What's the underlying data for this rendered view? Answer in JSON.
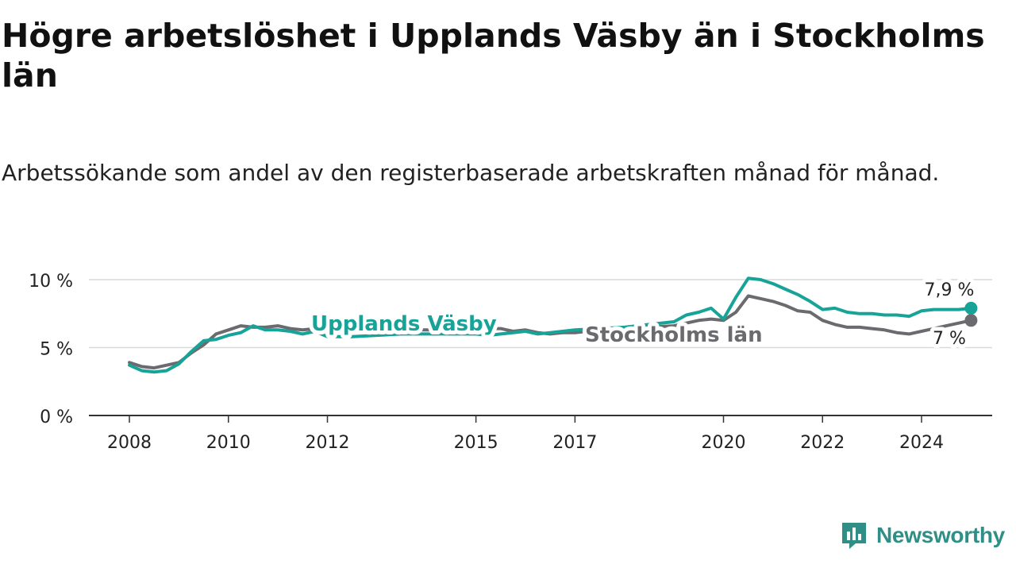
{
  "header": {
    "title": "Högre arbetslöshet i Upplands Väsby än i Stockholms län",
    "subtitle": "Arbetssökande som andel av den registerbaserade arbetskraften månad för månad."
  },
  "brand": {
    "name": "Newsworthy",
    "color": "#2f8f86"
  },
  "chart_data": {
    "type": "line",
    "title": "Högre arbetslöshet i Upplands Väsby än i Stockholms län",
    "subtitle": "Arbetssökande som andel av den registerbaserade arbetskraften månad för månad.",
    "xlabel": "",
    "ylabel": "",
    "xlim": [
      2008,
      2025.5
    ],
    "ylim": [
      0,
      10
    ],
    "y_ticks": [
      0,
      5,
      10
    ],
    "y_tick_labels": [
      "0 %",
      "5 %",
      "10 %"
    ],
    "x_ticks": [
      2008,
      2010,
      2012,
      2015,
      2017,
      2020,
      2022,
      2024
    ],
    "x_tick_labels": [
      "2008",
      "2010",
      "2012",
      "2015",
      "2017",
      "2020",
      "2022",
      "2024"
    ],
    "grid": true,
    "series": [
      {
        "name": "Upplands Väsby",
        "color": "#17a398",
        "label": "Upplands Väsby",
        "end_label": "7,9 %",
        "x": [
          2008.0,
          2008.25,
          2008.5,
          2008.75,
          2009.0,
          2009.25,
          2009.5,
          2009.75,
          2010.0,
          2010.25,
          2010.5,
          2010.75,
          2011.0,
          2011.25,
          2011.5,
          2011.75,
          2012.0,
          2012.5,
          2013.0,
          2013.5,
          2014.0,
          2014.5,
          2015.0,
          2015.25,
          2015.5,
          2015.75,
          2016.0,
          2016.25,
          2016.5,
          2016.75,
          2017.0,
          2017.5,
          2018.0,
          2018.5,
          2019.0,
          2019.25,
          2019.5,
          2019.75,
          2020.0,
          2020.25,
          2020.5,
          2020.75,
          2021.0,
          2021.25,
          2021.5,
          2021.75,
          2022.0,
          2022.25,
          2022.5,
          2022.75,
          2023.0,
          2023.25,
          2023.5,
          2023.75,
          2024.0,
          2024.25,
          2024.5,
          2024.75,
          2025.0
        ],
        "values": [
          3.7,
          3.3,
          3.2,
          3.3,
          3.8,
          4.7,
          5.5,
          5.6,
          5.9,
          6.1,
          6.6,
          6.3,
          6.3,
          6.2,
          6.0,
          6.2,
          5.8,
          5.8,
          5.9,
          6.0,
          6.0,
          6.0,
          6.0,
          5.9,
          6.0,
          6.1,
          6.2,
          6.0,
          6.1,
          6.2,
          6.3,
          6.4,
          6.5,
          6.7,
          6.9,
          7.4,
          7.6,
          7.9,
          7.1,
          8.7,
          10.1,
          10.0,
          9.7,
          9.3,
          8.9,
          8.4,
          7.8,
          7.9,
          7.6,
          7.5,
          7.5,
          7.4,
          7.4,
          7.3,
          7.7,
          7.8,
          7.8,
          7.8,
          7.9
        ]
      },
      {
        "name": "Stockholms län",
        "color": "#6b6b6f",
        "label": "Stockholms län",
        "end_label": "7 %",
        "x": [
          2008.0,
          2008.25,
          2008.5,
          2008.75,
          2009.0,
          2009.25,
          2009.5,
          2009.75,
          2010.0,
          2010.25,
          2010.5,
          2010.75,
          2011.0,
          2011.25,
          2011.5,
          2011.75,
          2012.0,
          2012.5,
          2013.0,
          2013.5,
          2014.0,
          2014.5,
          2015.0,
          2015.25,
          2015.5,
          2015.75,
          2016.0,
          2016.25,
          2016.5,
          2016.75,
          2017.0,
          2017.5,
          2018.0,
          2018.5,
          2019.0,
          2019.25,
          2019.5,
          2019.75,
          2020.0,
          2020.25,
          2020.5,
          2020.75,
          2021.0,
          2021.25,
          2021.5,
          2021.75,
          2022.0,
          2022.25,
          2022.5,
          2022.75,
          2023.0,
          2023.25,
          2023.5,
          2023.75,
          2024.0,
          2024.25,
          2024.5,
          2024.75,
          2025.0
        ],
        "values": [
          3.9,
          3.6,
          3.5,
          3.7,
          3.9,
          4.6,
          5.2,
          6.0,
          6.3,
          6.6,
          6.5,
          6.5,
          6.6,
          6.4,
          6.3,
          6.4,
          6.2,
          6.2,
          6.3,
          6.3,
          6.3,
          6.3,
          6.3,
          6.4,
          6.4,
          6.2,
          6.3,
          6.1,
          6.0,
          6.1,
          6.1,
          6.3,
          6.4,
          6.5,
          6.6,
          6.8,
          7.0,
          7.1,
          7.0,
          7.6,
          8.8,
          8.6,
          8.4,
          8.1,
          7.7,
          7.6,
          7.0,
          6.7,
          6.5,
          6.5,
          6.4,
          6.3,
          6.1,
          6.0,
          6.2,
          6.4,
          6.6,
          6.8,
          7.0
        ]
      }
    ]
  }
}
